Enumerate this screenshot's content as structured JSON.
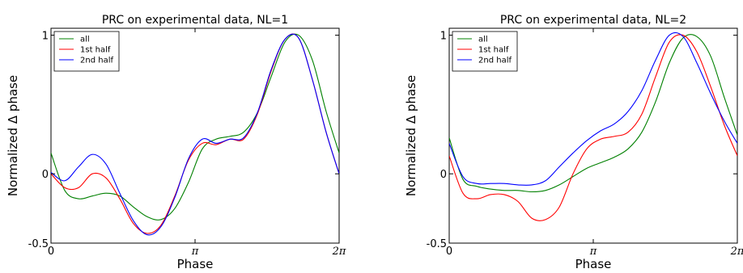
{
  "chart_data": [
    {
      "type": "line",
      "title": "PRC on experimental data, NL=1",
      "xlabel": "Phase",
      "ylabel": "Normalized Δ phase",
      "xlim": [
        0,
        6.2832
      ],
      "ylim": [
        -0.5,
        1.05
      ],
      "xticks": [
        {
          "value": 0,
          "label": "0"
        },
        {
          "value": 3.1416,
          "label": "π"
        },
        {
          "value": 6.2832,
          "label": "2π"
        }
      ],
      "yticks": [
        {
          "value": -0.5,
          "label": "-0.5"
        },
        {
          "value": 0,
          "label": "0"
        },
        {
          "value": 1,
          "label": "1"
        }
      ],
      "legend_position": "top-left",
      "x": [
        0,
        0.3,
        0.6,
        0.9,
        1.2,
        1.5,
        1.8,
        2.1,
        2.4,
        2.7,
        3.0,
        3.3,
        3.6,
        3.9,
        4.2,
        4.5,
        4.8,
        5.1,
        5.4,
        5.7,
        6.0,
        6.2832
      ],
      "series": [
        {
          "name": "all",
          "color": "#008000",
          "values": [
            0.15,
            -0.12,
            -0.18,
            -0.16,
            -0.14,
            -0.16,
            -0.24,
            -0.31,
            -0.33,
            -0.25,
            -0.06,
            0.18,
            0.25,
            0.27,
            0.3,
            0.44,
            0.7,
            0.95,
            1.0,
            0.82,
            0.45,
            0.15
          ]
        },
        {
          "name": "1st half",
          "color": "#ff0000",
          "values": [
            0.0,
            -0.1,
            -0.1,
            0.0,
            -0.03,
            -0.18,
            -0.36,
            -0.43,
            -0.37,
            -0.16,
            0.1,
            0.22,
            0.21,
            0.25,
            0.25,
            0.43,
            0.74,
            0.97,
            0.98,
            0.68,
            0.3,
            0.0
          ]
        },
        {
          "name": "2nd half",
          "color": "#0000ff",
          "values": [
            0.01,
            -0.05,
            0.05,
            0.14,
            0.07,
            -0.14,
            -0.34,
            -0.44,
            -0.38,
            -0.17,
            0.11,
            0.25,
            0.22,
            0.25,
            0.26,
            0.44,
            0.75,
            0.97,
            0.98,
            0.68,
            0.3,
            0.0
          ]
        }
      ]
    },
    {
      "type": "line",
      "title": "PRC on experimental data, NL=2",
      "xlabel": "Phase",
      "ylabel": "Normalized Δ phase",
      "xlim": [
        0,
        6.2832
      ],
      "ylim": [
        -0.5,
        1.05
      ],
      "xticks": [
        {
          "value": 0,
          "label": "0"
        },
        {
          "value": 3.1416,
          "label": "π"
        },
        {
          "value": 6.2832,
          "label": "2π"
        }
      ],
      "yticks": [
        {
          "value": -0.5,
          "label": "-0.5"
        },
        {
          "value": 0,
          "label": "0"
        },
        {
          "value": 1,
          "label": "1"
        }
      ],
      "legend_position": "top-left",
      "x": [
        0,
        0.3,
        0.6,
        0.9,
        1.2,
        1.5,
        1.8,
        2.1,
        2.4,
        2.7,
        3.0,
        3.3,
        3.6,
        3.9,
        4.2,
        4.5,
        4.8,
        5.1,
        5.4,
        5.7,
        6.0,
        6.2832
      ],
      "series": [
        {
          "name": "all",
          "color": "#008000",
          "values": [
            0.26,
            -0.04,
            -0.09,
            -0.11,
            -0.12,
            -0.12,
            -0.13,
            -0.12,
            -0.08,
            -0.02,
            0.04,
            0.08,
            0.12,
            0.18,
            0.3,
            0.52,
            0.8,
            0.98,
            0.99,
            0.85,
            0.55,
            0.28
          ]
        },
        {
          "name": "1st half",
          "color": "#ff0000",
          "values": [
            0.13,
            -0.14,
            -0.18,
            -0.15,
            -0.15,
            -0.2,
            -0.32,
            -0.33,
            -0.24,
            0.0,
            0.18,
            0.25,
            0.27,
            0.3,
            0.43,
            0.7,
            0.95,
            1.0,
            0.88,
            0.63,
            0.35,
            0.13
          ]
        },
        {
          "name": "2nd half",
          "color": "#0000ff",
          "values": [
            0.22,
            -0.02,
            -0.07,
            -0.07,
            -0.07,
            -0.08,
            -0.08,
            -0.05,
            0.05,
            0.15,
            0.24,
            0.31,
            0.36,
            0.45,
            0.6,
            0.82,
            1.0,
            0.99,
            0.8,
            0.58,
            0.38,
            0.22
          ]
        }
      ]
    }
  ]
}
